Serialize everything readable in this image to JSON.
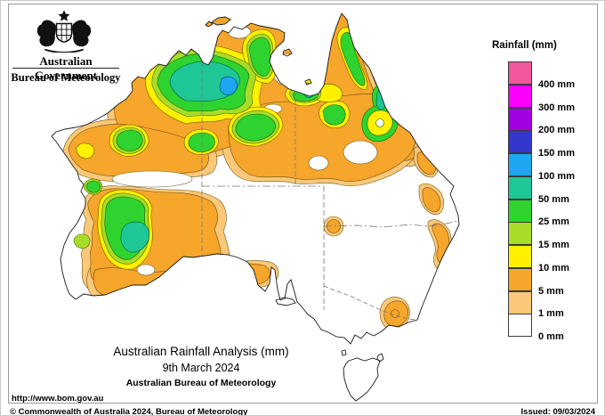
{
  "palette": {
    "pink": "#F2579B",
    "magenta": "#FB00FB",
    "purple": "#A001E3",
    "blue": "#3437CE",
    "light_blue": "#1FA6F0",
    "teal": "#1EC795",
    "green": "#2FD32F",
    "yellow_green": "#A8DC28",
    "yellow": "#FFF000",
    "orange": "#F5A62B",
    "tan": "#FAC878",
    "white": "#FFFFFF",
    "coastline": "#1a1a1a",
    "border_dash": "#787878",
    "contour": "#3d3d2a"
  },
  "header": {
    "government": "Australian Government",
    "bureau": "Bureau of Meteorology",
    "crest": "australian-coat-of-arms"
  },
  "legend": {
    "title": "Rainfall (mm)",
    "entries": [
      {
        "color": "pink",
        "label": "400 mm"
      },
      {
        "color": "magenta",
        "label": "300 mm"
      },
      {
        "color": "purple",
        "label": "200 mm"
      },
      {
        "color": "blue",
        "label": "150 mm"
      },
      {
        "color": "light_blue",
        "label": "100 mm"
      },
      {
        "color": "teal",
        "label": "50 mm"
      },
      {
        "color": "green",
        "label": "25 mm"
      },
      {
        "color": "yellow_green",
        "label": "15 mm"
      },
      {
        "color": "yellow",
        "label": "10 mm"
      },
      {
        "color": "orange",
        "label": "5 mm"
      },
      {
        "color": "tan",
        "label": "1 mm"
      },
      {
        "color": "white",
        "label": "0 mm"
      }
    ]
  },
  "caption": {
    "title": "Australian Rainfall Analysis (mm)",
    "date": "9th March 2024",
    "organisation": "Australian Bureau of Meteorology"
  },
  "footer": {
    "url": "http://www.bom.gov.au",
    "copyright": "© Commonwealth of Australia 2024, Bureau of Meteorology",
    "issued": "Issued: 09/03/2024"
  },
  "map": {
    "region": "Australia",
    "layer": "daily rainfall analysis",
    "scale_mm": [
      0,
      1,
      5,
      10,
      15,
      25,
      50,
      100,
      150,
      200,
      300,
      400
    ]
  }
}
